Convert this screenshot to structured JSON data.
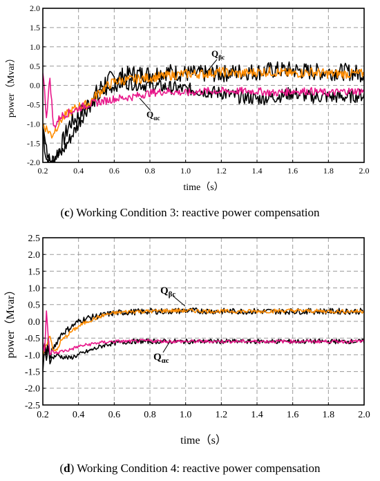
{
  "chart_data": [
    {
      "type": "line",
      "panel_letter": "c",
      "caption": "Working Condition 3: reactive power compensation",
      "xlabel": "time（s）",
      "ylabel": "power（Mvar）",
      "xlim": [
        0.2,
        2.0
      ],
      "ylim": [
        -2.0,
        2.0
      ],
      "xticks": [
        "0.2",
        "0.4",
        "0.6",
        "0.8",
        "1.0",
        "1.2",
        "1.4",
        "1.6",
        "1.8",
        "2.0"
      ],
      "yticks": [
        "2.0",
        "1.5",
        "1.0",
        "0.5",
        "0.0",
        "-0.5",
        "-1.0",
        "-1.5",
        "-2.0"
      ],
      "grid": true,
      "annotations": [
        {
          "main": "Q",
          "sub": "βc",
          "series": "orange"
        },
        {
          "main": "Q",
          "sub": "αc",
          "series": "magenta"
        }
      ],
      "series": [
        {
          "color": "#000000",
          "x": [
            0.2,
            0.22,
            0.25,
            0.3,
            0.35,
            0.4,
            0.45,
            0.5,
            0.55,
            0.6,
            0.65,
            0.7,
            0.8,
            0.9,
            1.0,
            1.1,
            1.2,
            1.3,
            1.4,
            1.5,
            1.6,
            1.7,
            1.8,
            1.9,
            2.0
          ],
          "y": [
            -1.2,
            -1.9,
            -2.0,
            -1.6,
            -1.0,
            -0.8,
            -0.5,
            -0.2,
            0.1,
            0.2,
            0.25,
            0.3,
            0.3,
            0.35,
            0.3,
            0.3,
            0.3,
            0.35,
            0.35,
            0.4,
            0.4,
            0.35,
            0.35,
            0.35,
            0.3
          ]
        },
        {
          "color": "#000000",
          "x": [
            0.2,
            0.22,
            0.25,
            0.3,
            0.35,
            0.4,
            0.45,
            0.5,
            0.55,
            0.6,
            0.65,
            0.7,
            0.8,
            0.9,
            1.0,
            1.1,
            1.2,
            1.3,
            1.4,
            1.5,
            1.6,
            1.7,
            1.8,
            1.9,
            2.0
          ],
          "y": [
            -1.0,
            -1.7,
            -1.9,
            -1.8,
            -1.4,
            -1.0,
            -0.6,
            -0.35,
            -0.15,
            0.0,
            0.05,
            0.05,
            0.0,
            -0.05,
            -0.1,
            -0.15,
            -0.2,
            -0.3,
            -0.35,
            -0.3,
            -0.2,
            -0.3,
            -0.3,
            -0.3,
            -0.25
          ]
        },
        {
          "color": "#ff8c00",
          "x": [
            0.2,
            0.25,
            0.3,
            0.35,
            0.4,
            0.45,
            0.5,
            0.55,
            0.6,
            0.7,
            0.8,
            0.9,
            1.0,
            1.1,
            1.2,
            1.3,
            1.4,
            1.5,
            1.6,
            1.7,
            1.8,
            1.9,
            2.0
          ],
          "y": [
            -1.0,
            -1.3,
            -0.9,
            -0.7,
            -0.55,
            -0.5,
            -0.25,
            -0.05,
            0.1,
            0.15,
            0.2,
            0.25,
            0.3,
            0.3,
            0.35,
            0.3,
            0.35,
            0.35,
            0.3,
            0.35,
            0.3,
            0.3,
            0.3
          ]
        },
        {
          "color": "#e8178a",
          "x": [
            0.2,
            0.22,
            0.24,
            0.26,
            0.3,
            0.35,
            0.4,
            0.45,
            0.5,
            0.55,
            0.6,
            0.7,
            0.8,
            0.9,
            1.0,
            1.1,
            1.2,
            1.3,
            1.4,
            1.5,
            1.6,
            1.7,
            1.8,
            1.9,
            2.0
          ],
          "y": [
            0.4,
            -0.8,
            0.2,
            -1.1,
            -0.8,
            -0.7,
            -0.6,
            -0.5,
            -0.45,
            -0.4,
            -0.35,
            -0.3,
            -0.2,
            -0.15,
            -0.2,
            -0.15,
            -0.15,
            -0.15,
            -0.15,
            -0.2,
            -0.15,
            -0.15,
            -0.2,
            -0.15,
            -0.15
          ]
        }
      ]
    },
    {
      "type": "line",
      "panel_letter": "d",
      "caption": "Working Condition 4: reactive power compensation",
      "xlabel": "time（s）",
      "ylabel": "power（Mvar）",
      "xlim": [
        0.2,
        2.0
      ],
      "ylim": [
        -2.5,
        2.5
      ],
      "xticks": [
        "0.2",
        "0.4",
        "0.6",
        "0.8",
        "1.0",
        "1.2",
        "1.4",
        "1.6",
        "1.8",
        "2.0"
      ],
      "yticks": [
        "2.5",
        "2.0",
        "1.5",
        "1.0",
        "0.5",
        "0.0",
        "-0.5",
        "-1.0",
        "-1.5",
        "-2.0",
        "-2.5"
      ],
      "grid": true,
      "annotations": [
        {
          "main": "Q",
          "sub": "βc",
          "series": "orange"
        },
        {
          "main": "Q",
          "sub": "αc",
          "series": "magenta"
        }
      ],
      "series": [
        {
          "color": "#000000",
          "x": [
            0.2,
            0.21,
            0.22,
            0.23,
            0.24,
            0.25,
            0.28,
            0.3,
            0.35,
            0.4,
            0.45,
            0.5,
            0.55,
            0.6,
            0.7,
            0.8,
            0.9,
            1.0,
            1.2,
            1.4,
            1.6,
            1.8,
            2.0
          ],
          "y": [
            -1.3,
            -0.6,
            -1.0,
            -0.5,
            -1.1,
            -0.9,
            -0.6,
            -0.4,
            -0.2,
            0.0,
            0.1,
            0.15,
            0.2,
            0.25,
            0.28,
            0.3,
            0.3,
            0.32,
            0.3,
            0.3,
            0.3,
            0.3,
            0.3
          ]
        },
        {
          "color": "#000000",
          "x": [
            0.2,
            0.21,
            0.22,
            0.23,
            0.24,
            0.25,
            0.28,
            0.3,
            0.35,
            0.4,
            0.45,
            0.5,
            0.55,
            0.6,
            0.7,
            0.8,
            0.9,
            1.0,
            1.2,
            1.4,
            1.6,
            1.8,
            2.0
          ],
          "y": [
            -1.5,
            -0.8,
            -1.2,
            -0.7,
            -1.2,
            -1.1,
            -1.0,
            -1.05,
            -1.1,
            -1.0,
            -0.9,
            -0.8,
            -0.7,
            -0.65,
            -0.6,
            -0.6,
            -0.6,
            -0.6,
            -0.6,
            -0.6,
            -0.6,
            -0.6,
            -0.6
          ]
        },
        {
          "color": "#ff8c00",
          "x": [
            0.2,
            0.22,
            0.24,
            0.26,
            0.28,
            0.3,
            0.35,
            0.4,
            0.45,
            0.5,
            0.55,
            0.6,
            0.7,
            0.8,
            0.9,
            1.0,
            1.2,
            1.4,
            1.6,
            1.8,
            2.0
          ],
          "y": [
            -1.0,
            -0.7,
            -0.4,
            -0.9,
            -0.85,
            -0.6,
            -0.35,
            -0.15,
            0.0,
            0.1,
            0.2,
            0.25,
            0.3,
            0.3,
            0.32,
            0.32,
            0.3,
            0.3,
            0.32,
            0.3,
            0.3
          ]
        },
        {
          "color": "#e8178a",
          "x": [
            0.2,
            0.21,
            0.22,
            0.23,
            0.24,
            0.25,
            0.28,
            0.3,
            0.35,
            0.4,
            0.45,
            0.5,
            0.55,
            0.6,
            0.7,
            0.8,
            0.9,
            1.0,
            1.2,
            1.4,
            1.6,
            1.8,
            2.0
          ],
          "y": [
            -0.6,
            -0.9,
            0.3,
            -0.5,
            -1.0,
            -0.9,
            -0.95,
            -0.9,
            -0.85,
            -0.75,
            -0.7,
            -0.65,
            -0.62,
            -0.6,
            -0.6,
            -0.58,
            -0.6,
            -0.6,
            -0.6,
            -0.6,
            -0.6,
            -0.6,
            -0.6
          ]
        }
      ]
    }
  ]
}
